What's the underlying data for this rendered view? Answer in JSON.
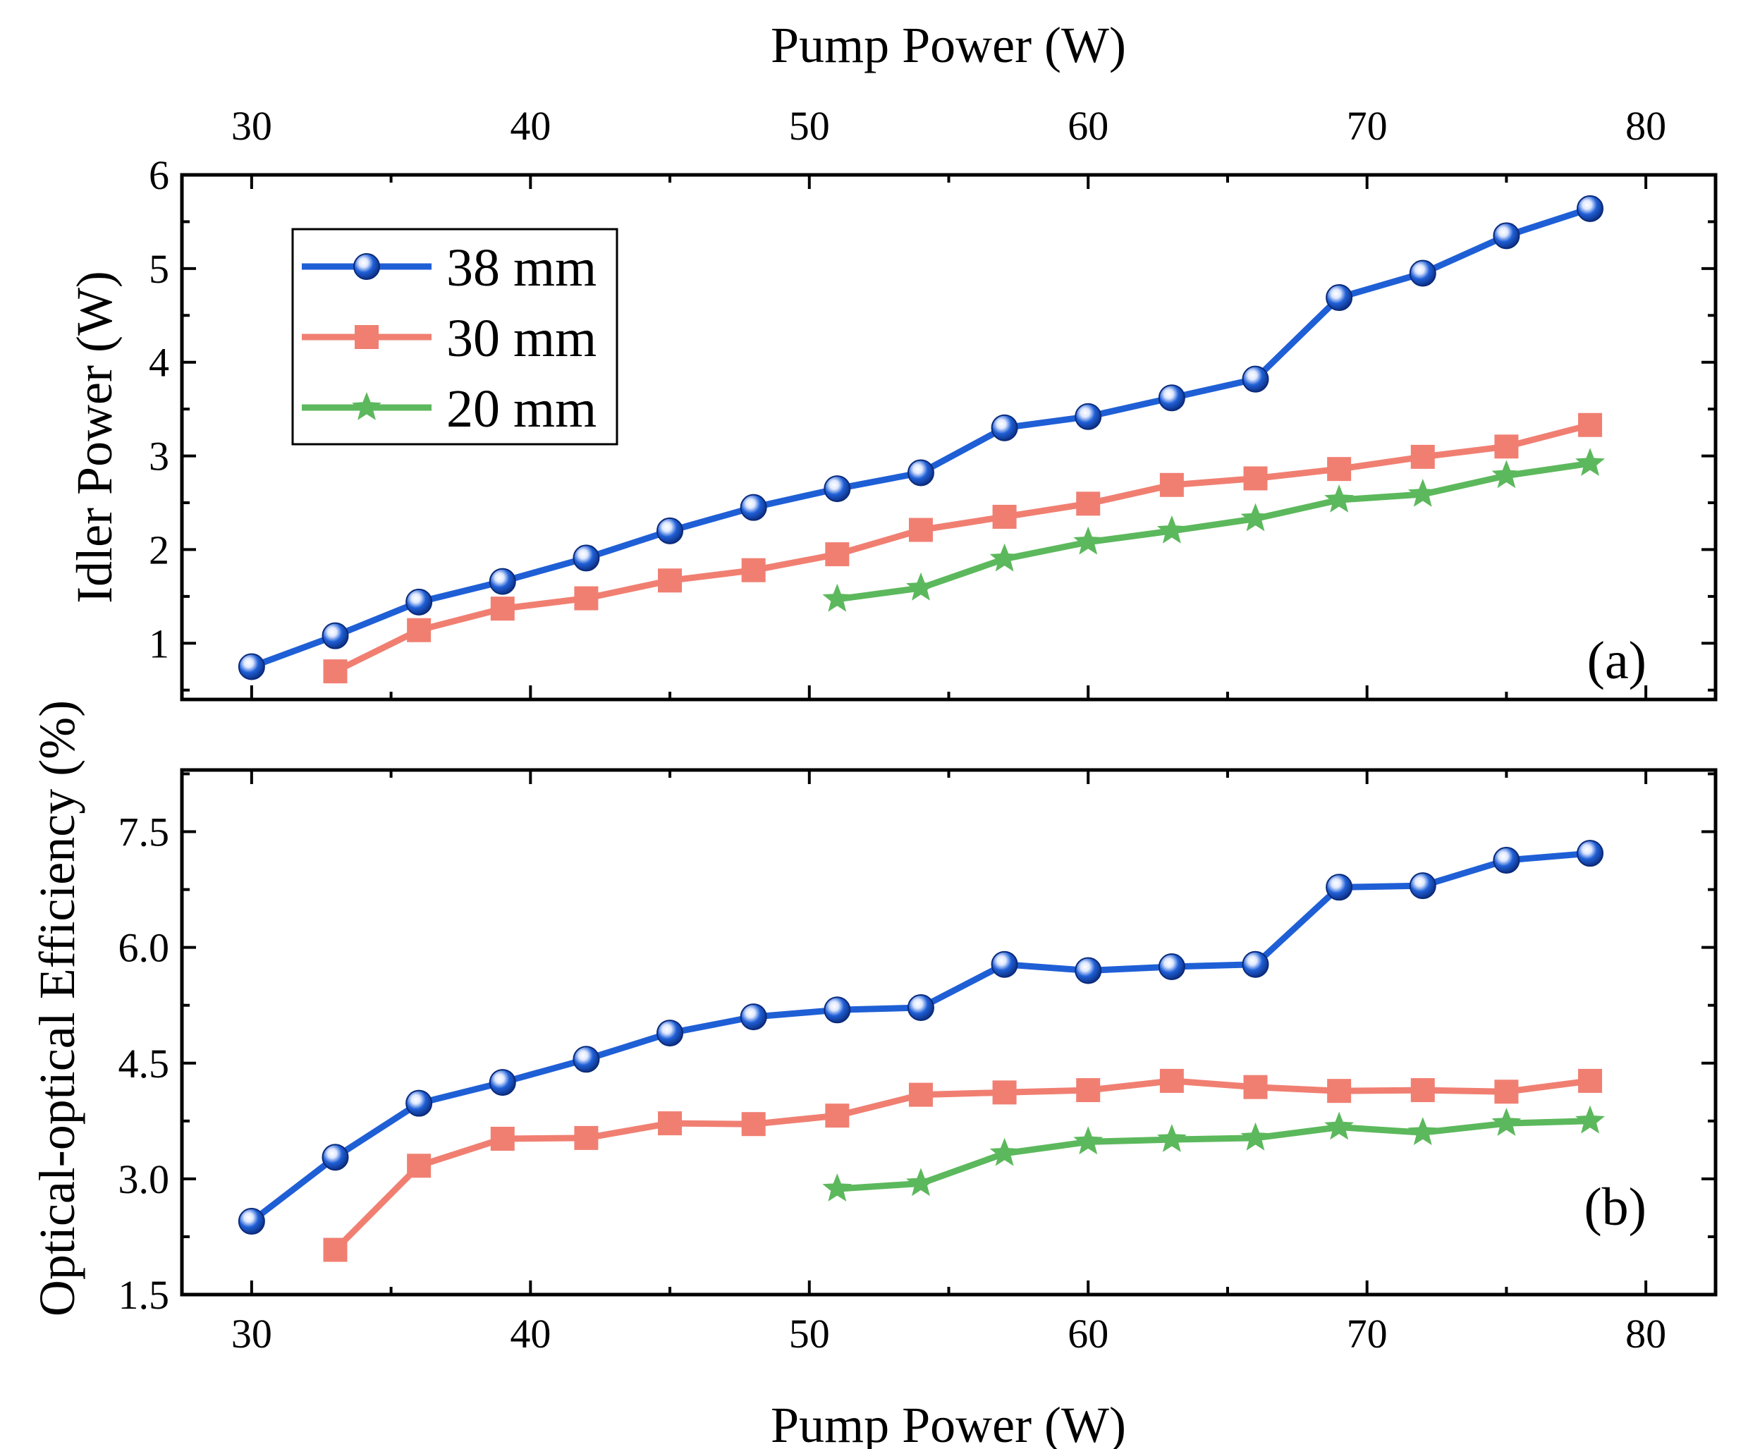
{
  "colors": {
    "38 mm": "#1f5fd6",
    "30 mm": "#f07f72",
    "20 mm": "#5cb85c"
  },
  "legend": {
    "placement": "top-left of panel (a)",
    "entries": [
      {
        "label": "38 mm",
        "marker": "sphere"
      },
      {
        "label": "30 mm",
        "marker": "square"
      },
      {
        "label": "20 mm",
        "marker": "star"
      }
    ]
  },
  "chart_data": [
    {
      "type": "line",
      "panel_label": "(a)",
      "xlabel": "Pump Power (W)",
      "xlabel_position": "top",
      "ylabel": "Idler Power (W)",
      "xlim": [
        27.5,
        82.5
      ],
      "ylim": [
        0.4,
        6
      ],
      "xticks": [
        30,
        40,
        50,
        60,
        70,
        80
      ],
      "yticks": [
        1,
        2,
        3,
        4,
        5,
        6
      ],
      "grid": false,
      "series": [
        {
          "name": "38 mm",
          "x": [
            30,
            33,
            36,
            39,
            42,
            45,
            48,
            51,
            54,
            57,
            60,
            63,
            66,
            69,
            72,
            75,
            78
          ],
          "y": [
            0.75,
            1.08,
            1.44,
            1.66,
            1.91,
            2.2,
            2.45,
            2.65,
            2.82,
            3.3,
            3.42,
            3.62,
            3.82,
            4.69,
            4.95,
            5.35,
            5.64
          ]
        },
        {
          "name": "30 mm",
          "x": [
            33,
            36,
            39,
            42,
            45,
            48,
            51,
            54,
            57,
            60,
            63,
            66,
            69,
            72,
            75,
            78
          ],
          "y": [
            0.7,
            1.14,
            1.37,
            1.48,
            1.67,
            1.78,
            1.95,
            2.21,
            2.35,
            2.49,
            2.69,
            2.76,
            2.86,
            2.99,
            3.1,
            3.33
          ]
        },
        {
          "name": "20 mm",
          "x": [
            51,
            54,
            57,
            60,
            63,
            66,
            69,
            72,
            75,
            78
          ],
          "y": [
            1.47,
            1.59,
            1.9,
            2.08,
            2.2,
            2.33,
            2.53,
            2.59,
            2.79,
            2.92
          ]
        }
      ]
    },
    {
      "type": "line",
      "panel_label": "(b)",
      "xlabel": "Pump Power (W)",
      "ylabel": "Optical-optical Efficiency (%)",
      "xlim": [
        27.5,
        82.5
      ],
      "ylim": [
        1.5,
        8.3
      ],
      "xticks": [
        30,
        40,
        50,
        60,
        70,
        80
      ],
      "yticks": [
        "1.5",
        "3.0",
        "4.5",
        "6.0",
        "7.5"
      ],
      "grid": false,
      "series": [
        {
          "name": "38 mm",
          "x": [
            30,
            33,
            36,
            39,
            42,
            45,
            48,
            51,
            54,
            57,
            60,
            63,
            66,
            69,
            72,
            75,
            78
          ],
          "y": [
            2.45,
            3.28,
            3.98,
            4.25,
            4.55,
            4.89,
            5.1,
            5.19,
            5.22,
            5.78,
            5.7,
            5.75,
            5.78,
            6.78,
            6.8,
            7.13,
            7.22
          ]
        },
        {
          "name": "30 mm",
          "x": [
            33,
            36,
            39,
            42,
            45,
            48,
            51,
            54,
            57,
            60,
            63,
            66,
            69,
            72,
            75,
            78
          ],
          "y": [
            2.08,
            3.17,
            3.52,
            3.53,
            3.72,
            3.71,
            3.82,
            4.09,
            4.12,
            4.15,
            4.27,
            4.19,
            4.14,
            4.15,
            4.13,
            4.27
          ]
        },
        {
          "name": "20 mm",
          "x": [
            51,
            54,
            57,
            60,
            63,
            66,
            69,
            72,
            75,
            78
          ],
          "y": [
            2.87,
            2.94,
            3.33,
            3.48,
            3.51,
            3.53,
            3.67,
            3.6,
            3.72,
            3.75
          ]
        }
      ]
    }
  ]
}
